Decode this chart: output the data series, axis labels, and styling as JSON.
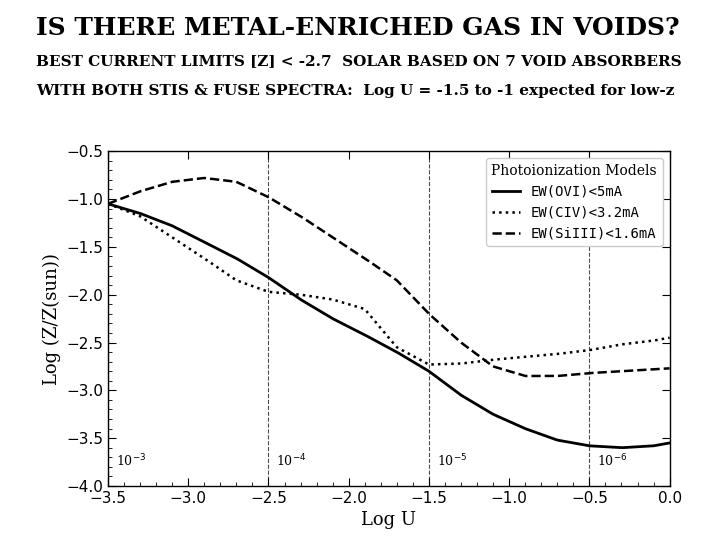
{
  "title": "IS THERE METAL-ENRICHED GAS IN VOIDS?",
  "subtitle_line1": "BEST CURRENT LIMITS [Z] < -2.7  SOLAR BASED ON 7 VOID ABSORBERS",
  "subtitle_line2": "WITH BOTH STIS & FUSE SPECTRA:  Log U = -1.5 to -1 expected for low-z",
  "xlabel": "Log U",
  "ylabel": "Log (Z/Z(sun))",
  "xlim": [
    -3.5,
    0.0
  ],
  "ylim": [
    -4.0,
    -0.5
  ],
  "xticks": [
    -3.5,
    -3.0,
    -2.5,
    -2.0,
    -1.5,
    -1.0,
    -0.5,
    0.0
  ],
  "yticks": [
    -4.0,
    -3.5,
    -3.0,
    -2.5,
    -2.0,
    -1.5,
    -1.0,
    -0.5
  ],
  "legend_title": "Photoionization Models",
  "legend_entries": [
    {
      "label": "EW(OVI)<5mA",
      "linestyle": "-",
      "linewidth": 2.0
    },
    {
      "label": "EW(CIV)<3.2mA",
      "linestyle": ":",
      "linewidth": 1.5
    },
    {
      "label": "EW(SiIII)<1.6mA",
      "linestyle": "--",
      "linewidth": 1.5
    }
  ],
  "vlines": [
    -3.5,
    -2.5,
    -1.5,
    -0.5
  ],
  "vline_labels": [
    "10$^{-3}$",
    "10$^{-4}$",
    "10$^{-5}$",
    "10$^{-6}$"
  ],
  "color": "black",
  "bg_color": "white",
  "title_fontsize": 18,
  "subtitle_fontsize": 11,
  "axis_label_fontsize": 13,
  "tick_fontsize": 11,
  "legend_fontsize": 10,
  "ovi_x": [
    -3.5,
    -3.3,
    -3.1,
    -2.9,
    -2.7,
    -2.5,
    -2.3,
    -2.1,
    -1.9,
    -1.7,
    -1.5,
    -1.3,
    -1.1,
    -0.9,
    -0.7,
    -0.5,
    -0.3,
    -0.1,
    0.0
  ],
  "ovi_y": [
    -1.05,
    -1.15,
    -1.28,
    -1.45,
    -1.62,
    -1.82,
    -2.05,
    -2.25,
    -2.42,
    -2.6,
    -2.8,
    -3.05,
    -3.25,
    -3.4,
    -3.52,
    -3.58,
    -3.6,
    -3.58,
    -3.55
  ],
  "civ_x": [
    -3.5,
    -3.3,
    -3.1,
    -2.9,
    -2.7,
    -2.5,
    -2.3,
    -2.1,
    -1.9,
    -1.7,
    -1.5,
    -1.3,
    -1.1,
    -0.9,
    -0.7,
    -0.5,
    -0.3,
    -0.1,
    0.0
  ],
  "civ_y": [
    -1.05,
    -1.18,
    -1.4,
    -1.62,
    -1.85,
    -1.97,
    -2.0,
    -2.05,
    -2.15,
    -2.55,
    -2.73,
    -2.72,
    -2.68,
    -2.65,
    -2.62,
    -2.58,
    -2.52,
    -2.48,
    -2.45
  ],
  "siiii_x": [
    -3.5,
    -3.3,
    -3.1,
    -2.9,
    -2.7,
    -2.5,
    -2.3,
    -2.1,
    -1.9,
    -1.7,
    -1.5,
    -1.3,
    -1.1,
    -0.9,
    -0.7,
    -0.5,
    -0.3,
    -0.1,
    0.0
  ],
  "siiii_y": [
    -1.05,
    -0.92,
    -0.82,
    -0.78,
    -0.82,
    -0.98,
    -1.18,
    -1.4,
    -1.62,
    -1.85,
    -2.2,
    -2.5,
    -2.75,
    -2.85,
    -2.85,
    -2.82,
    -2.8,
    -2.78,
    -2.77
  ]
}
